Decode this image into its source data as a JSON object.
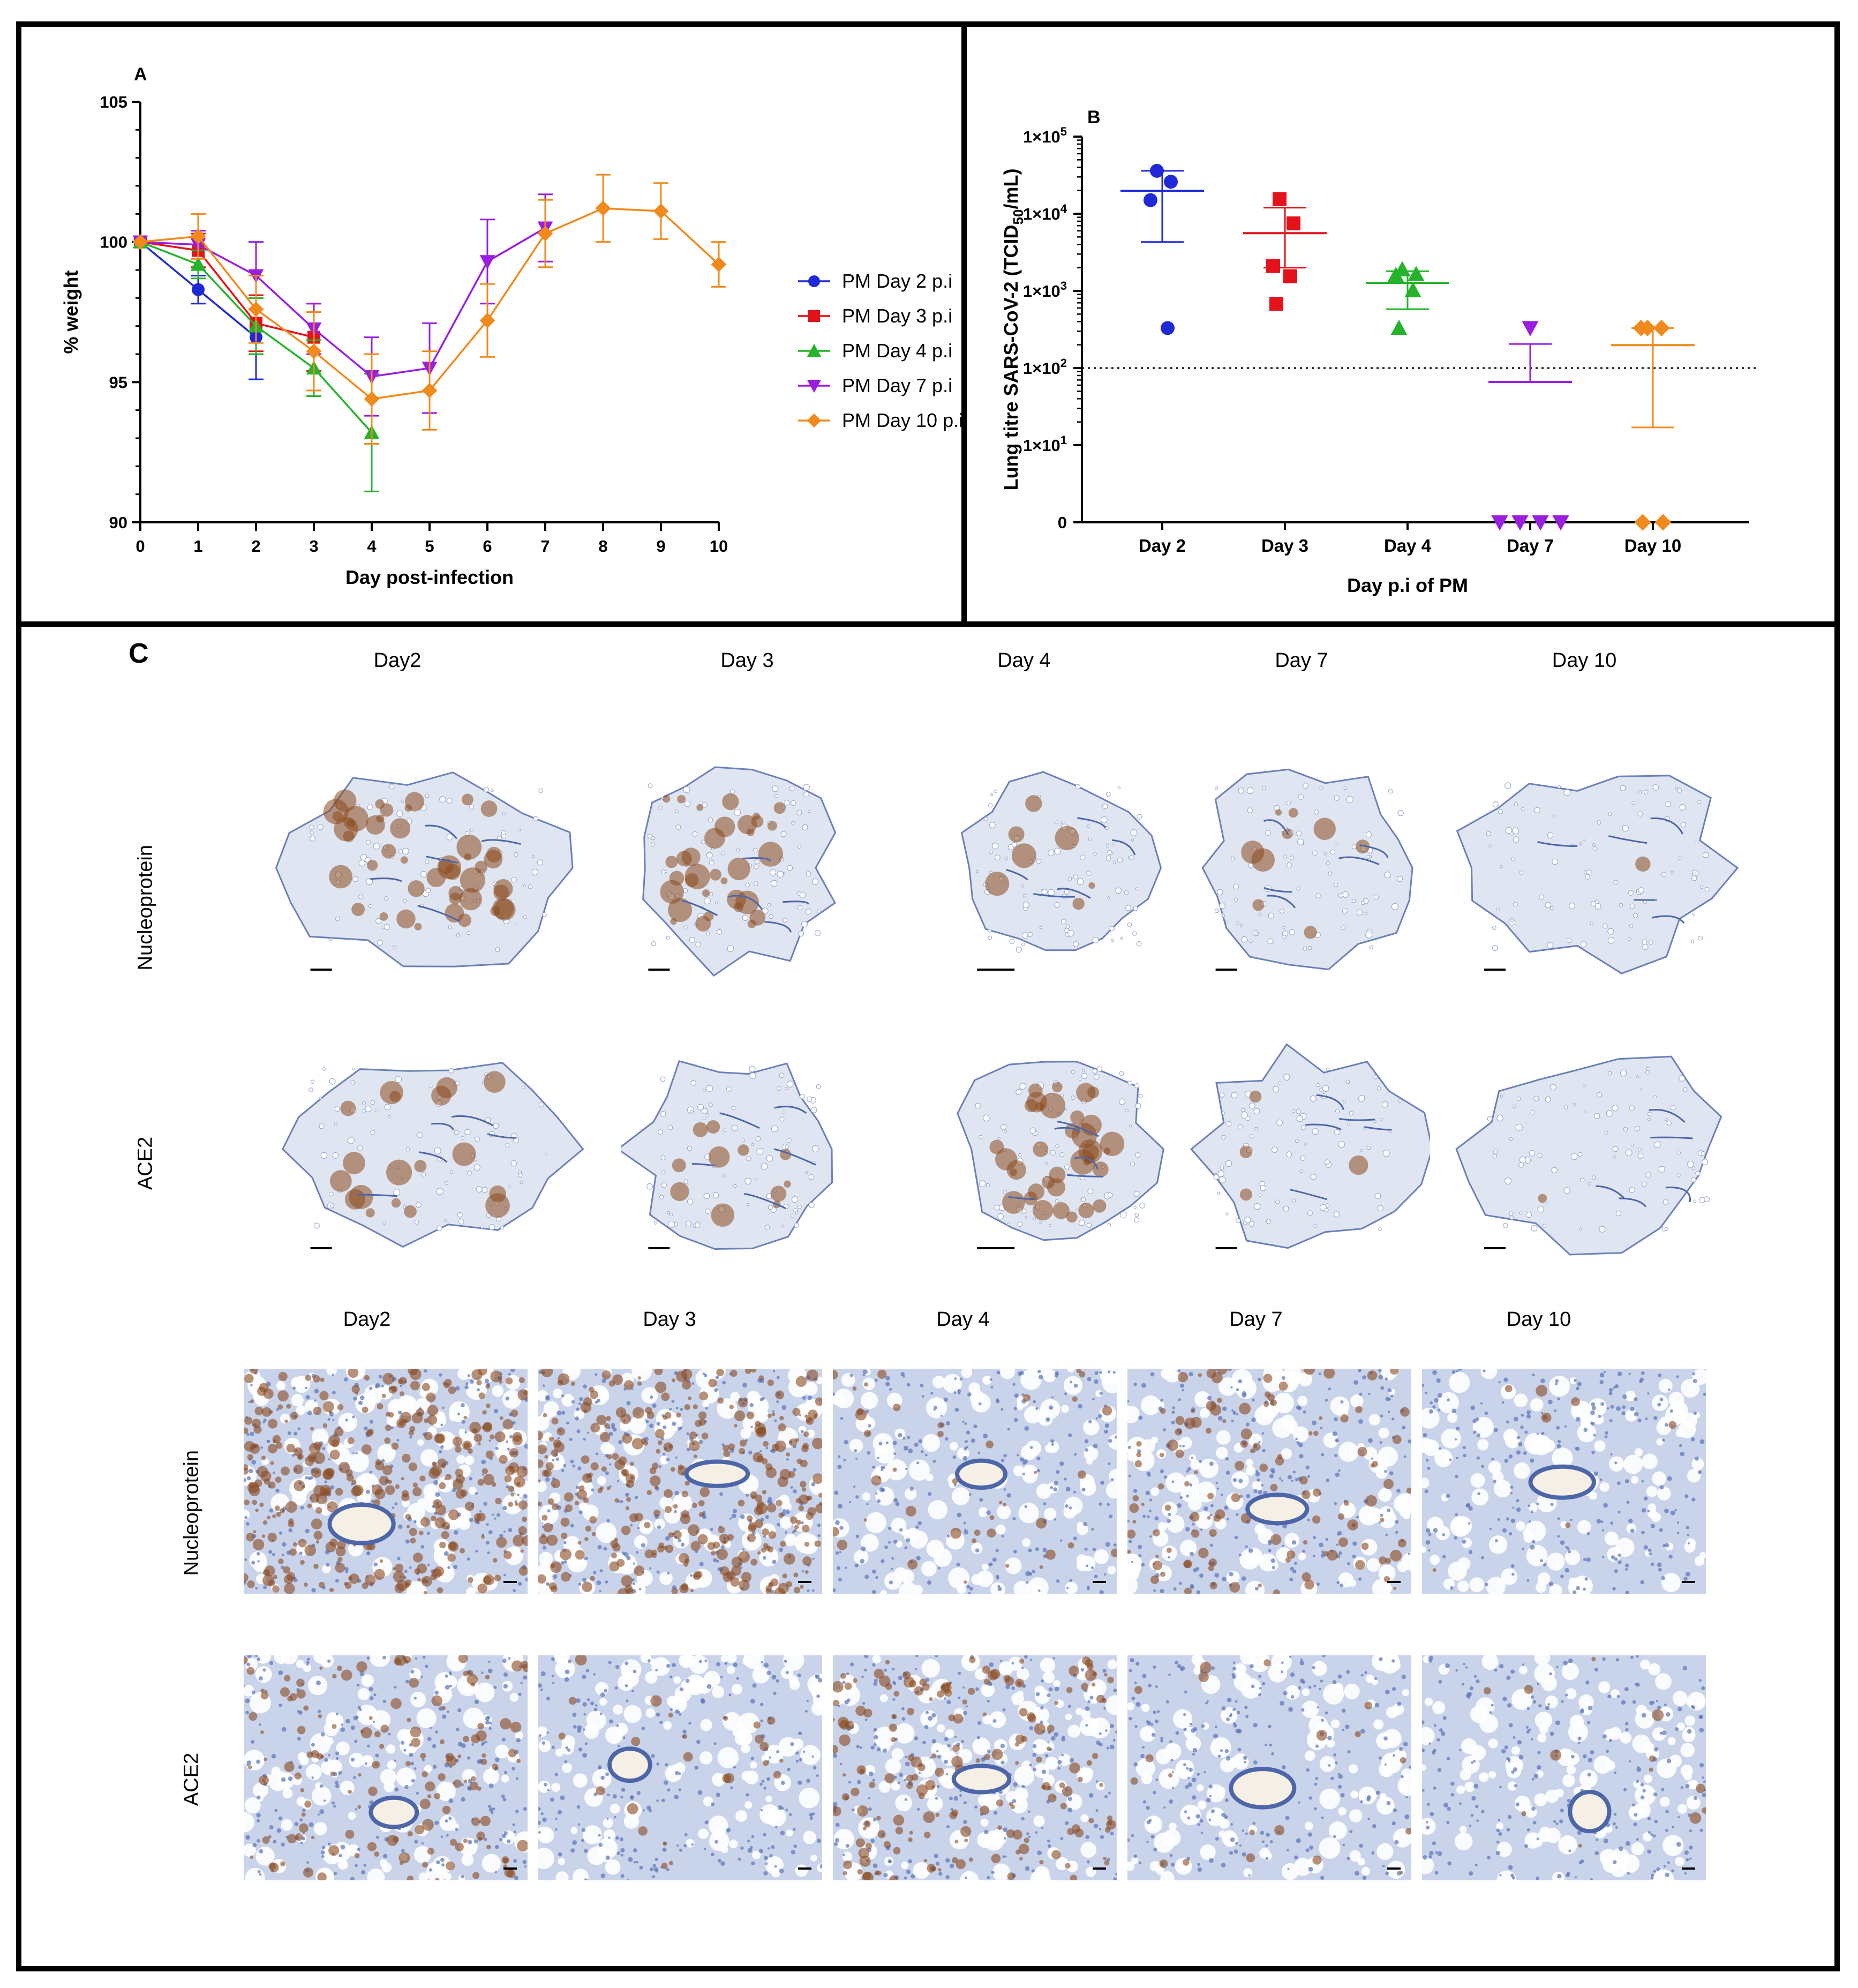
{
  "panel_labels": {
    "a": "A",
    "b": "B",
    "c": "C"
  },
  "colors": {
    "day2": "#1f2ad6",
    "day3": "#e3121b",
    "day4": "#25b32b",
    "day7": "#9a1ee0",
    "day10": "#f08a1c",
    "stain_brown": "#8a4a1e",
    "tissue_blue": "#5a74b8"
  },
  "chart_data": [
    {
      "id": "A",
      "type": "line",
      "title": "",
      "xlabel": "Day post-infection",
      "ylabel": "% weight",
      "xlim": [
        0,
        10
      ],
      "ylim": [
        90,
        105
      ],
      "x_ticks": [
        "0",
        "1",
        "2",
        "3",
        "4",
        "5",
        "6",
        "7",
        "8",
        "9",
        "10"
      ],
      "y_ticks": [
        "90",
        "95",
        "100",
        "105"
      ],
      "legend_position": "right",
      "series": [
        {
          "name": "PM Day 2 p.i",
          "color_key": "day2",
          "marker": "circle",
          "x": [
            0,
            1,
            2
          ],
          "y": [
            100,
            98.3,
            96.6
          ],
          "err": [
            0,
            0.5,
            1.5
          ]
        },
        {
          "name": "PM Day 3 p.i",
          "color_key": "day3",
          "marker": "square",
          "x": [
            0,
            1,
            2,
            3
          ],
          "y": [
            100,
            99.7,
            97.1,
            96.6
          ],
          "err": [
            0,
            0.6,
            1.0,
            1.2
          ]
        },
        {
          "name": "PM Day 4 p.i",
          "color_key": "day4",
          "marker": "triangle-up",
          "x": [
            0,
            1,
            2,
            3,
            4
          ],
          "y": [
            100,
            99.2,
            97.0,
            95.5,
            93.2
          ],
          "err": [
            0,
            0.5,
            1.0,
            1.0,
            2.1
          ]
        },
        {
          "name": "PM Day 7 p.i",
          "color_key": "day7",
          "marker": "triangle-down",
          "x": [
            0,
            1,
            2,
            3,
            4,
            5,
            6,
            7
          ],
          "y": [
            100,
            99.9,
            98.8,
            96.9,
            95.2,
            95.5,
            99.3,
            100.5
          ],
          "err": [
            0,
            0.5,
            1.2,
            0.9,
            1.4,
            1.6,
            1.5,
            1.2
          ]
        },
        {
          "name": "PM Day 10 p.i",
          "color_key": "day10",
          "marker": "diamond",
          "x": [
            0,
            1,
            2,
            3,
            4,
            5,
            6,
            7,
            8,
            9,
            10
          ],
          "y": [
            100,
            100.2,
            97.6,
            96.1,
            94.4,
            94.7,
            97.2,
            100.3,
            101.2,
            101.1,
            99.2
          ],
          "err": [
            0,
            0.8,
            1.2,
            1.4,
            1.6,
            1.4,
            1.3,
            1.2,
            1.2,
            1.0,
            0.8
          ]
        }
      ]
    },
    {
      "id": "B",
      "type": "scatter",
      "title": "",
      "xlabel": "Day p.i of PM",
      "ylabel_main": "Lung titre SARS-CoV-2 (TCID",
      "ylabel_sub": "50",
      "ylabel_end": "/mL)",
      "yscale": "log",
      "ylim": [
        1,
        100000
      ],
      "y_tick_values": [
        1,
        10,
        100,
        1000,
        10000,
        100000
      ],
      "y_tick_labels": [
        "0",
        "1×10",
        "1×10",
        "1×10",
        "1×10",
        "1×10"
      ],
      "y_tick_exponents": [
        "",
        "1",
        "2",
        "3",
        "4",
        "5"
      ],
      "detection_limit": 100,
      "categories": [
        "Day 2",
        "Day 3",
        "Day 4",
        "Day 7",
        "Day 10"
      ],
      "series": [
        {
          "name": "Day 2",
          "color_key": "day2",
          "marker": "circle",
          "values": [
            36000,
            26000,
            15000,
            330
          ],
          "mean": 19800,
          "sd_low": 4300,
          "sd_high": 36000
        },
        {
          "name": "Day 3",
          "color_key": "day3",
          "marker": "square",
          "values": [
            15500,
            7500,
            2100,
            1550,
            680
          ],
          "mean": 5600,
          "sd_low": 2000,
          "sd_high": 12000
        },
        {
          "name": "Day 4",
          "color_key": "day4",
          "marker": "triangle-up",
          "values": [
            1900,
            1650,
            1600,
            1020,
            330
          ],
          "mean": 1270,
          "sd_low": 580,
          "sd_high": 1800
        },
        {
          "name": "Day 7",
          "color_key": "day7",
          "marker": "triangle-down",
          "values": [
            330,
            0,
            0,
            0,
            0
          ],
          "mean": 66,
          "sd_low": 66,
          "sd_high": 205
        },
        {
          "name": "Day 10",
          "color_key": "day10",
          "marker": "diamond",
          "values": [
            330,
            330,
            330,
            0,
            0
          ],
          "mean": 198,
          "sd_low": 17,
          "sd_high": 330
        }
      ]
    }
  ],
  "panel_c": {
    "top_columns": [
      "Day2",
      "Day 3",
      "Day 4",
      "Day 7",
      "Day 10"
    ],
    "bottom_columns": [
      "Day2",
      "Day 3",
      "Day 4",
      "Day 7",
      "Day 10"
    ],
    "rows": [
      "Nucleoprotein",
      "ACE2"
    ],
    "top_images": [
      [
        0.75,
        0.55,
        0.12,
        0.15,
        0.02
      ],
      [
        0.3,
        0.18,
        0.6,
        0.06,
        0.02
      ]
    ],
    "bottom_images": [
      [
        0.85,
        0.8,
        0.1,
        0.3,
        0.02
      ],
      [
        0.35,
        0.06,
        0.45,
        0.05,
        0.03
      ]
    ]
  }
}
